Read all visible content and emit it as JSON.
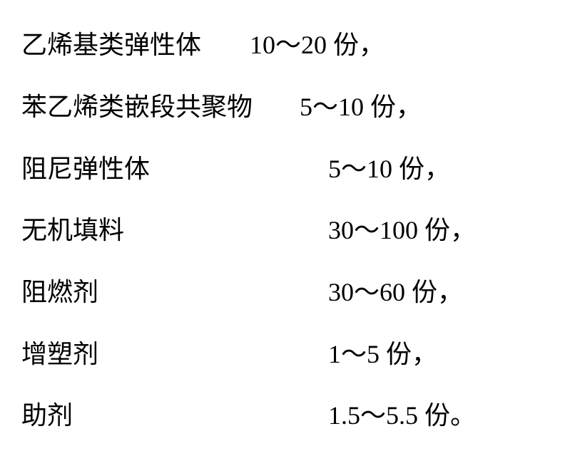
{
  "rows": [
    {
      "label": "乙烯基类弹性体",
      "value": "10～20 份，"
    },
    {
      "label": "苯乙烯类嵌段共聚物",
      "value": "5～10 份，"
    },
    {
      "label": "阻尼弹性体",
      "value": "5～10 份，"
    },
    {
      "label": "无机填料",
      "value": "30～100 份，"
    },
    {
      "label": "阻燃剂",
      "value": "30～60 份，"
    },
    {
      "label": "增塑剂",
      "value": "1～5 份，"
    },
    {
      "label": "助剂",
      "value": "1.5～5.5 份。"
    }
  ],
  "style": {
    "background_color": "#ffffff",
    "text_color": "#000000",
    "font_size": 36,
    "font_family": "SimSun"
  }
}
